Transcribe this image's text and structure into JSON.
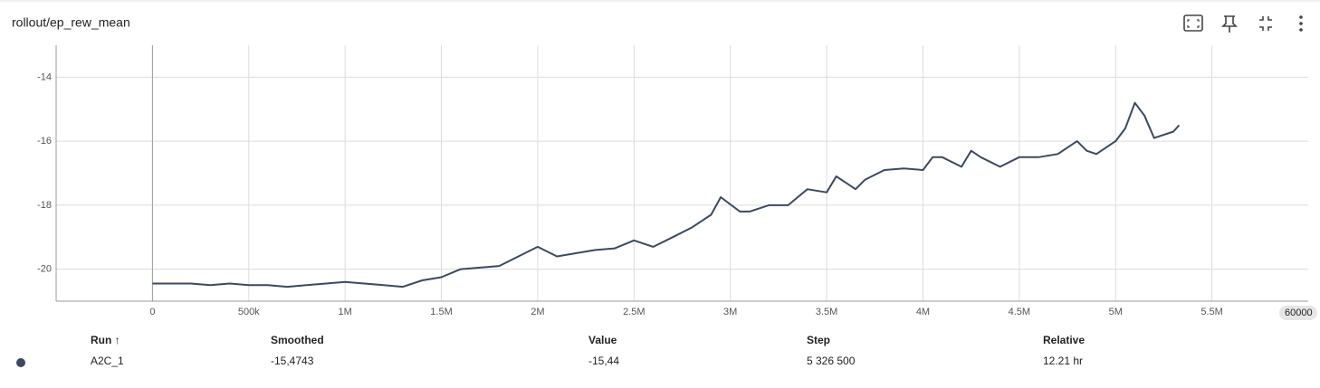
{
  "header": {
    "title": "rollout/ep_rew_mean"
  },
  "chart_data": {
    "type": "line",
    "x": [
      0,
      100000,
      200000,
      300000,
      400000,
      500000,
      600000,
      700000,
      800000,
      900000,
      1000000,
      1100000,
      1200000,
      1300000,
      1400000,
      1500000,
      1600000,
      1700000,
      1800000,
      1900000,
      2000000,
      2100000,
      2200000,
      2300000,
      2400000,
      2500000,
      2600000,
      2700000,
      2800000,
      2900000,
      2950000,
      3050000,
      3100000,
      3200000,
      3300000,
      3400000,
      3500000,
      3550000,
      3600000,
      3650000,
      3700000,
      3800000,
      3900000,
      4000000,
      4050000,
      4100000,
      4200000,
      4250000,
      4300000,
      4400000,
      4500000,
      4600000,
      4700000,
      4800000,
      4850000,
      4900000,
      5000000,
      5050000,
      5100000,
      5150000,
      5200000,
      5300000,
      5330000
    ],
    "series": [
      {
        "name": "A2C_1",
        "color": "#3b4a5e",
        "values": [
          -20.45,
          -20.45,
          -20.45,
          -20.5,
          -20.45,
          -20.5,
          -20.5,
          -20.55,
          -20.5,
          -20.45,
          -20.4,
          -20.45,
          -20.5,
          -20.55,
          -20.35,
          -20.25,
          -20.0,
          -19.95,
          -19.9,
          -19.6,
          -19.3,
          -19.6,
          -19.5,
          -19.4,
          -19.35,
          -19.1,
          -19.3,
          -19.0,
          -18.7,
          -18.3,
          -17.75,
          -18.2,
          -18.2,
          -18.0,
          -18.0,
          -17.5,
          -17.6,
          -17.1,
          -17.3,
          -17.5,
          -17.2,
          -16.9,
          -16.85,
          -16.9,
          -16.5,
          -16.5,
          -16.8,
          -16.3,
          -16.5,
          -16.8,
          -16.5,
          -16.5,
          -16.4,
          -16.0,
          -16.3,
          -16.4,
          -16.0,
          -15.6,
          -14.8,
          -15.2,
          -15.9,
          -15.7,
          -15.5
        ]
      }
    ],
    "xlim": [
      -500000,
      6000000
    ],
    "xticks": [
      0,
      {
        "value": 500000,
        "label": "500k"
      },
      {
        "value": 1000000,
        "label": "1M"
      },
      {
        "value": 1500000,
        "label": "1.5M"
      },
      {
        "value": 2000000,
        "label": "2M"
      },
      {
        "value": 2500000,
        "label": "2.5M"
      },
      {
        "value": 3000000,
        "label": "3M"
      },
      {
        "value": 3500000,
        "label": "3.5M"
      },
      {
        "value": 4000000,
        "label": "4M"
      },
      {
        "value": 4500000,
        "label": "4.5M"
      },
      {
        "value": 5000000,
        "label": "5M"
      },
      {
        "value": 5500000,
        "label": "5.5M"
      }
    ],
    "x_hover_label": "60000",
    "ylim": [
      -21,
      -13
    ],
    "yticks": [
      -20,
      -18,
      -16,
      -14
    ],
    "grid": true
  },
  "table": {
    "headers": [
      "Run ↑",
      "Smoothed",
      "Value",
      "Step",
      "Relative"
    ],
    "rows": [
      [
        "A2C_1",
        "-15,4743",
        "-15,44",
        "5 326 500",
        "12.21 hr"
      ]
    ]
  }
}
